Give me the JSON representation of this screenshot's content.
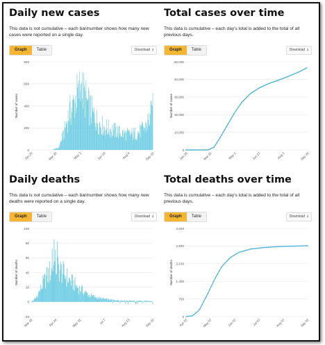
{
  "tabs": {
    "graph": "Graph",
    "table": "Table"
  },
  "download_label": "Download",
  "download_icon": "download-icon",
  "colors": {
    "bar": "#5bc6e0",
    "line": "#4fb3d9",
    "accent": "#f5b731"
  },
  "panels": {
    "daily_cases": {
      "title": "Daily new cases",
      "description": "This data is not cumulative – each bar/number shows how many new cases were reported on a single day."
    },
    "total_cases": {
      "title": "Total cases over time",
      "description": "This data is cumulative – each day's total is added to the total of all previous days."
    },
    "daily_deaths": {
      "title": "Daily deaths",
      "description": "This data is not cumulative – each bar/number shows how many new deaths were reported on a single day."
    },
    "total_deaths": {
      "title": "Total deaths over time",
      "description": "This data is cumulative – each day's total is added to the total of all previous days."
    }
  },
  "chart_data": [
    {
      "id": "daily_cases",
      "type": "bar",
      "title": "Daily new cases",
      "ylabel": "Number of cases",
      "ylim": [
        0,
        800
      ],
      "yticks": [
        0,
        200,
        400,
        600,
        800
      ],
      "xticks": [
        "Jan 20",
        "Mar 18",
        "May 3",
        "Jun 18",
        "Aug 4",
        "Sep 20"
      ],
      "x_range": [
        "2020-01-20",
        "2020-09-20"
      ],
      "keypoints": [
        [
          "2020-01-20",
          0
        ],
        [
          "2020-03-01",
          0
        ],
        [
          "2020-03-15",
          20
        ],
        [
          "2020-03-25",
          150
        ],
        [
          "2020-04-05",
          330
        ],
        [
          "2020-04-15",
          420
        ],
        [
          "2020-04-22",
          510
        ],
        [
          "2020-04-28",
          560
        ],
        [
          "2020-05-03",
          520
        ],
        [
          "2020-05-12",
          420
        ],
        [
          "2020-05-22",
          330
        ],
        [
          "2020-06-01",
          260
        ],
        [
          "2020-06-12",
          215
        ],
        [
          "2020-06-25",
          190
        ],
        [
          "2020-07-10",
          170
        ],
        [
          "2020-07-25",
          145
        ],
        [
          "2020-08-10",
          140
        ],
        [
          "2020-08-25",
          165
        ],
        [
          "2020-09-05",
          210
        ],
        [
          "2020-09-14",
          290
        ],
        [
          "2020-09-20",
          360
        ]
      ],
      "peaks": [
        [
          "2020-04-24",
          630
        ],
        [
          "2020-04-30",
          610
        ],
        [
          "2020-05-06",
          590
        ],
        [
          "2020-09-19",
          400
        ]
      ],
      "grid": true,
      "legend": "none"
    },
    {
      "id": "total_cases",
      "type": "line",
      "title": "Total cases over time",
      "ylabel": "Number of cases",
      "ylim": [
        0,
        50000
      ],
      "yticks": [
        0,
        10000,
        20000,
        30000,
        40000,
        50000
      ],
      "ytick_labels": [
        "0",
        "10,000",
        "20,000",
        "30,000",
        "40,000",
        "50,000"
      ],
      "xticks": [
        "Jan 28",
        "Mar 15",
        "May 1",
        "Jun 17",
        "Aug 3",
        "Sep 20"
      ],
      "x_range": [
        "2020-01-28",
        "2020-09-20"
      ],
      "keypoints": [
        [
          "2020-01-28",
          0
        ],
        [
          "2020-03-10",
          0
        ],
        [
          "2020-03-22",
          1500
        ],
        [
          "2020-04-01",
          6000
        ],
        [
          "2020-04-15",
          13000
        ],
        [
          "2020-05-01",
          21000
        ],
        [
          "2020-05-15",
          27000
        ],
        [
          "2020-06-01",
          32000
        ],
        [
          "2020-06-17",
          35000
        ],
        [
          "2020-07-05",
          37500
        ],
        [
          "2020-07-20",
          39000
        ],
        [
          "2020-08-03",
          40500
        ],
        [
          "2020-08-20",
          42500
        ],
        [
          "2020-09-05",
          44500
        ],
        [
          "2020-09-15",
          46000
        ],
        [
          "2020-09-20",
          47000
        ]
      ],
      "grid": true,
      "legend": "none"
    },
    {
      "id": "daily_deaths",
      "type": "bar",
      "title": "Daily deaths",
      "ylabel": "Number of deaths",
      "ylim": [
        -20,
        100
      ],
      "yticks": [
        -20,
        0,
        20,
        40,
        60,
        80,
        100
      ],
      "xticks": [
        "Mar 18",
        "Apr 24",
        "May 31",
        "Jul 7",
        "Aug 13",
        "Sep 20"
      ],
      "x_range": [
        "2020-03-18",
        "2020-09-20"
      ],
      "keypoints": [
        [
          "2020-03-18",
          0
        ],
        [
          "2020-03-25",
          5
        ],
        [
          "2020-04-05",
          25
        ],
        [
          "2020-04-15",
          40
        ],
        [
          "2020-04-24",
          50
        ],
        [
          "2020-05-05",
          40
        ],
        [
          "2020-05-15",
          30
        ],
        [
          "2020-05-31",
          18
        ],
        [
          "2020-06-15",
          9
        ],
        [
          "2020-06-30",
          5
        ],
        [
          "2020-07-15",
          3
        ],
        [
          "2020-08-01",
          2
        ],
        [
          "2020-09-20",
          1
        ]
      ],
      "peaks": [
        [
          "2020-04-22",
          85
        ],
        [
          "2020-04-27",
          82
        ],
        [
          "2020-04-19",
          72
        ]
      ],
      "grid": true,
      "legend": "none"
    },
    {
      "id": "total_deaths",
      "type": "line",
      "title": "Total deaths over time",
      "ylabel": "Number of deaths",
      "ylim": [
        0,
        3500
      ],
      "yticks": [
        0,
        700,
        1400,
        2100,
        2800,
        3500
      ],
      "ytick_labels": [
        "0",
        "700",
        "1,400",
        "2,100",
        "2,800",
        "3,500"
      ],
      "xticks": [
        "Apr 07",
        "May 07",
        "Jun 07",
        "Jul 07",
        "Aug 07",
        "Sep 07"
      ],
      "x_range": [
        "2020-03-18",
        "2020-09-20"
      ],
      "keypoints": [
        [
          "2020-03-18",
          0
        ],
        [
          "2020-03-28",
          30
        ],
        [
          "2020-04-07",
          250
        ],
        [
          "2020-04-20",
          900
        ],
        [
          "2020-05-01",
          1500
        ],
        [
          "2020-05-12",
          2000
        ],
        [
          "2020-05-25",
          2350
        ],
        [
          "2020-06-07",
          2550
        ],
        [
          "2020-06-25",
          2680
        ],
        [
          "2020-07-15",
          2740
        ],
        [
          "2020-08-07",
          2780
        ],
        [
          "2020-09-07",
          2800
        ],
        [
          "2020-09-20",
          2810
        ]
      ],
      "grid": true,
      "legend": "none"
    }
  ]
}
